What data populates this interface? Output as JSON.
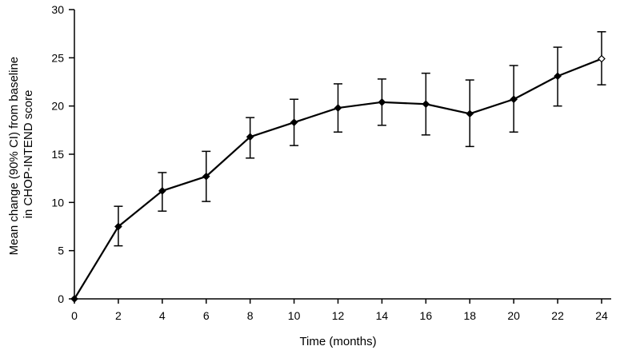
{
  "chart_data": {
    "type": "line",
    "xlabel": "Time (months)",
    "ylabel_lines": [
      "Mean change (90% CI) from baseline",
      "in CHOP-INTEND score"
    ],
    "xlim": [
      0,
      24
    ],
    "ylim": [
      0,
      30
    ],
    "xticks": [
      0,
      2,
      4,
      6,
      8,
      10,
      12,
      14,
      16,
      18,
      20,
      22,
      24
    ],
    "yticks": [
      0,
      5,
      10,
      15,
      20,
      25,
      30
    ],
    "grid": false,
    "series": [
      {
        "x": [
          0,
          2,
          4,
          6,
          8,
          10,
          12,
          14,
          16,
          18,
          20,
          22,
          24
        ],
        "y": [
          0,
          7.5,
          11.2,
          12.7,
          16.8,
          18.3,
          19.8,
          20.4,
          20.2,
          19.2,
          20.7,
          23.1,
          24.9
        ],
        "ci_lower": [
          null,
          5.5,
          9.1,
          10.1,
          14.6,
          15.9,
          17.3,
          18.0,
          17.0,
          15.8,
          17.3,
          20.0,
          22.2
        ],
        "ci_upper": [
          null,
          9.6,
          13.1,
          15.3,
          18.8,
          20.7,
          22.3,
          22.8,
          23.4,
          22.7,
          24.2,
          26.1,
          27.7
        ],
        "marker": "diamond",
        "color": "#000000"
      }
    ]
  }
}
